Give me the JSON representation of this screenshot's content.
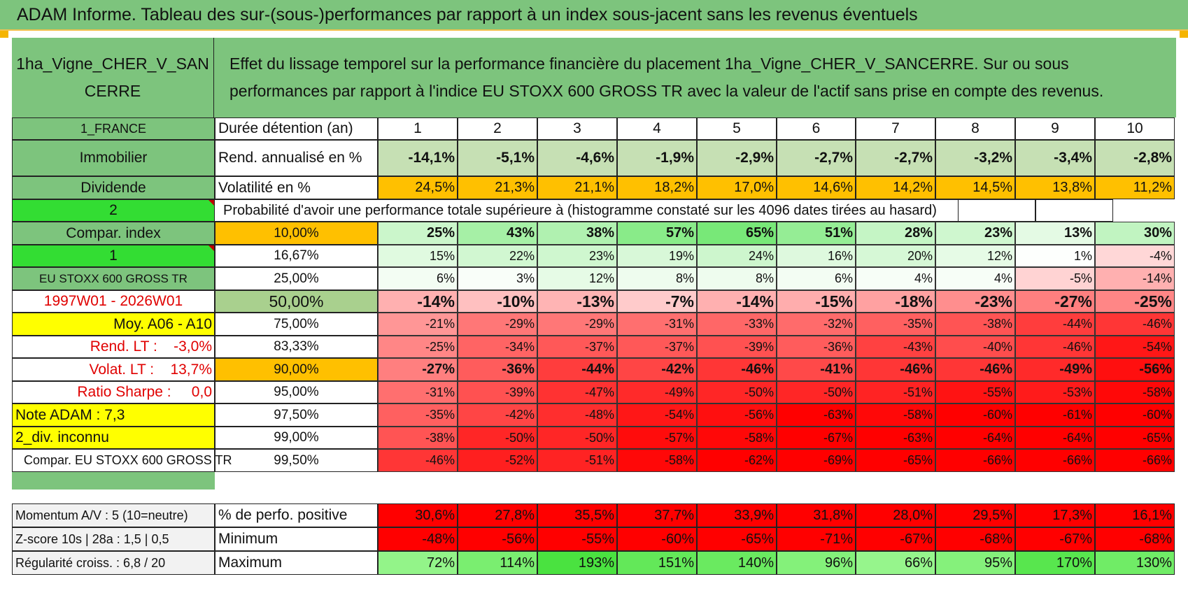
{
  "title": "ADAM Informe. Tableau des sur-(sous-)performances par rapport à un index sous-jacent sans les revenus éventuels",
  "header": {
    "asset_name": "1ha_Vigne_CHER_V_SANCERRE",
    "description": "Effet du lissage temporel sur la performance financière du placement 1ha_Vigne_CHER_V_SANCERRE. Sur ou sous performances par rapport à l'indice EU STOXX 600 GROSS TR avec la valeur de l'actif sans prise en compte des revenus."
  },
  "left_panel": {
    "country": "1_FRANCE",
    "category": "Immobilier",
    "sub_category": "Dividende",
    "code_2": "2",
    "compar_index_label": "Compar. index",
    "code_1": "1",
    "index_name": "EU STOXX 600 GROSS TR",
    "period": "1997W01 - 2026W01",
    "moy": "Moy. A06 - A10",
    "rend_lt": "Rend. LT :    -3,0%",
    "volat_lt": "Volat. LT :    13,7%",
    "sharpe": "Ratio Sharpe :     0,0",
    "note_adam": "Note ADAM : 7,3",
    "div": "2_div. inconnu",
    "compar_full": "Compar. EU STOXX 600 GROSS TR",
    "momentum": "Momentum A/V : 5 (10=neutre)",
    "zscore": "Z-score 10s | 28a : 1,5 | 0,5",
    "regularite": "Régularité croiss. : 6,8 / 20"
  },
  "labels": {
    "duree": "Durée détention (an)",
    "rend": "Rend. annualisé en %",
    "vol": "Volatilité en %",
    "proba": "Probabilité d'avoir une performance totale supérieure à (histogramme constaté sur les 4096 dates tirées au hasard)",
    "pos": "% de perfo. positive",
    "min": "Minimum",
    "max": "Maximum"
  },
  "years": [
    "1",
    "2",
    "3",
    "4",
    "5",
    "6",
    "7",
    "8",
    "9",
    "10"
  ],
  "rend": [
    "-14,1%",
    "-5,1%",
    "-4,6%",
    "-1,9%",
    "-2,9%",
    "-2,7%",
    "-2,7%",
    "-3,2%",
    "-3,4%",
    "-2,8%"
  ],
  "vol": [
    "24,5%",
    "21,3%",
    "21,1%",
    "18,2%",
    "17,0%",
    "14,6%",
    "14,2%",
    "14,5%",
    "13,8%",
    "11,2%"
  ],
  "prob_rows": [
    {
      "threshold": "10,00%",
      "values": [
        "25%",
        "43%",
        "38%",
        "57%",
        "65%",
        "51%",
        "28%",
        "23%",
        "13%",
        "30%"
      ]
    },
    {
      "threshold": "16,67%",
      "values": [
        "15%",
        "22%",
        "23%",
        "19%",
        "24%",
        "16%",
        "20%",
        "12%",
        "1%",
        "-4%"
      ]
    },
    {
      "threshold": "25,00%",
      "values": [
        "6%",
        "3%",
        "12%",
        "8%",
        "8%",
        "6%",
        "4%",
        "4%",
        "-5%",
        "-14%"
      ]
    },
    {
      "threshold": "50,00%",
      "values": [
        "-14%",
        "-10%",
        "-13%",
        "-7%",
        "-14%",
        "-15%",
        "-18%",
        "-23%",
        "-27%",
        "-25%"
      ]
    },
    {
      "threshold": "75,00%",
      "values": [
        "-21%",
        "-29%",
        "-29%",
        "-31%",
        "-33%",
        "-32%",
        "-35%",
        "-38%",
        "-44%",
        "-46%"
      ]
    },
    {
      "threshold": "83,33%",
      "values": [
        "-25%",
        "-34%",
        "-37%",
        "-37%",
        "-39%",
        "-36%",
        "-43%",
        "-40%",
        "-46%",
        "-54%"
      ]
    },
    {
      "threshold": "90,00%",
      "values": [
        "-27%",
        "-36%",
        "-44%",
        "-42%",
        "-46%",
        "-41%",
        "-46%",
        "-46%",
        "-49%",
        "-56%"
      ]
    },
    {
      "threshold": "95,00%",
      "values": [
        "-31%",
        "-39%",
        "-47%",
        "-49%",
        "-50%",
        "-50%",
        "-51%",
        "-55%",
        "-53%",
        "-58%"
      ]
    },
    {
      "threshold": "97,50%",
      "values": [
        "-35%",
        "-42%",
        "-48%",
        "-54%",
        "-56%",
        "-63%",
        "-58%",
        "-60%",
        "-61%",
        "-60%"
      ]
    },
    {
      "threshold": "99,00%",
      "values": [
        "-38%",
        "-50%",
        "-50%",
        "-57%",
        "-58%",
        "-67%",
        "-63%",
        "-64%",
        "-64%",
        "-65%"
      ]
    },
    {
      "threshold": "99,50%",
      "values": [
        "-46%",
        "-52%",
        "-51%",
        "-58%",
        "-62%",
        "-69%",
        "-65%",
        "-66%",
        "-66%",
        "-66%"
      ]
    }
  ],
  "pos": [
    "30,6%",
    "27,8%",
    "35,5%",
    "37,7%",
    "33,9%",
    "31,8%",
    "28,0%",
    "29,5%",
    "17,3%",
    "16,1%"
  ],
  "min": [
    "-48%",
    "-56%",
    "-55%",
    "-60%",
    "-65%",
    "-71%",
    "-67%",
    "-68%",
    "-67%",
    "-68%"
  ],
  "max": [
    "72%",
    "114%",
    "193%",
    "151%",
    "140%",
    "96%",
    "66%",
    "95%",
    "170%",
    "130%"
  ]
}
